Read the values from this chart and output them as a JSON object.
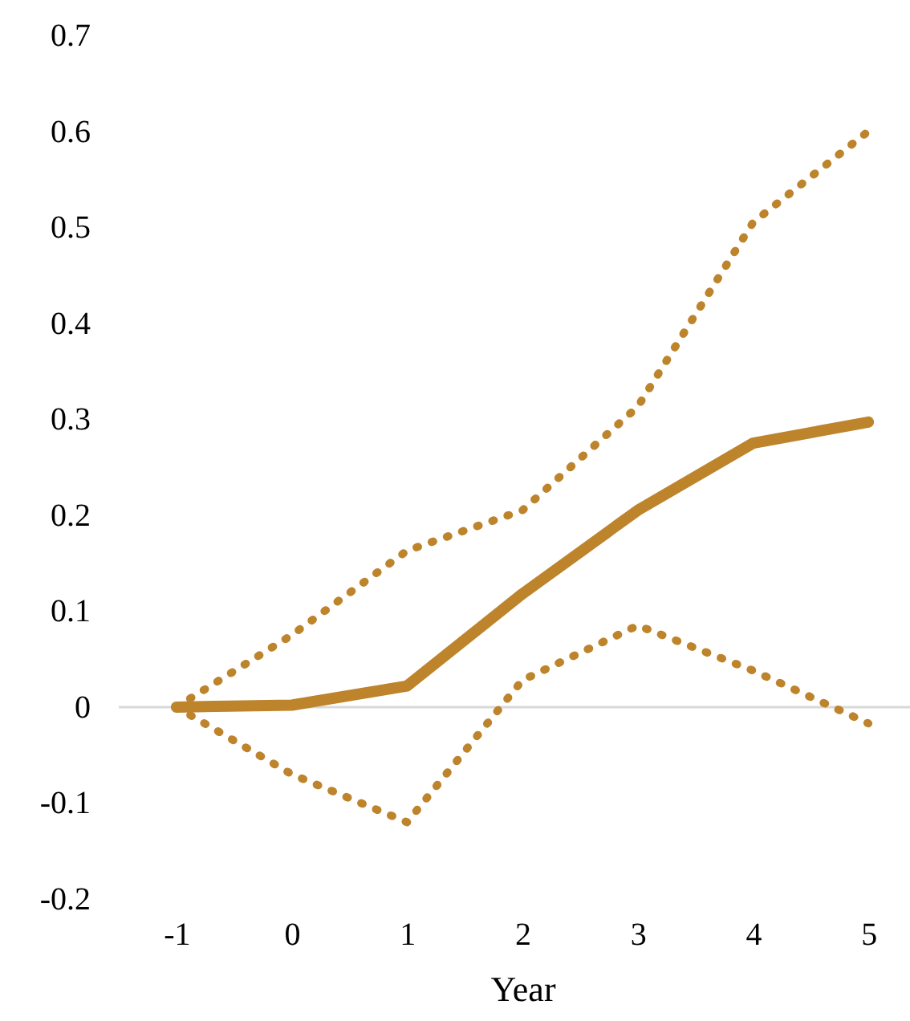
{
  "chart_data": {
    "type": "line",
    "xlabel": "Year",
    "x": [
      -1,
      0,
      1,
      2,
      3,
      4,
      5
    ],
    "series": [
      {
        "color": "#bd842c",
        "line_style": "dotted",
        "values": [
          0,
          0.075,
          0.163,
          0.205,
          0.313,
          0.505,
          0.6
        ]
      },
      {
        "color": "#bd842c",
        "line_style": "dotted",
        "values": [
          0,
          -0.07,
          -0.12,
          0.028,
          0.085,
          0.038,
          -0.017
        ]
      },
      {
        "color": "#bd842c",
        "line_style": "solid",
        "values": [
          0,
          0.002,
          0.022,
          0.118,
          0.205,
          0.275,
          0.297
        ]
      }
    ],
    "xlim": [
      -1.5,
      5.5
    ],
    "xticks": [
      -1,
      0,
      1,
      2,
      3,
      4,
      5
    ],
    "ylim": [
      -0.2,
      0.7
    ],
    "yticks": [
      -0.2,
      -0.1,
      0,
      0.1,
      0.2,
      0.3,
      0.4,
      0.5,
      0.6,
      0.7
    ],
    "ref_lines": [
      {
        "axis": "y",
        "value": 0,
        "color": "#d9d9d9"
      }
    ],
    "grid": false,
    "marker": "none"
  }
}
